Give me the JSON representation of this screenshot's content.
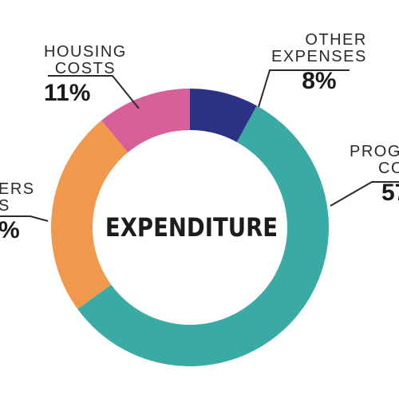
{
  "chart_data": {
    "type": "pie",
    "title": "EXPENDITURE",
    "slices": [
      {
        "label_lines": [
          "OTHER",
          "EXPENSES"
        ],
        "value_label": "8%",
        "value": 8,
        "color": "#2b3183"
      },
      {
        "label_lines": [
          "PROG",
          "CO"
        ],
        "value_label": "57",
        "value": 57,
        "color": "#3aaba4"
      },
      {
        "label_lines": [
          "ERS",
          "S"
        ],
        "value_label": "%",
        "value": 24,
        "color": "#f0994c"
      },
      {
        "label_lines": [
          "HOUSING",
          "COSTS"
        ],
        "value_label": "11%",
        "value": 11,
        "color": "#d8609a"
      }
    ]
  }
}
